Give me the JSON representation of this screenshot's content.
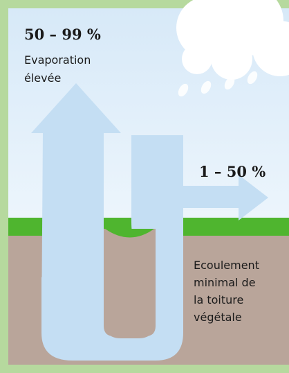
{
  "evaporation": {
    "range": "50 – 99 %",
    "lines": [
      "Evaporation",
      "élevée"
    ]
  },
  "runoff": {
    "range": "1 – 50 %"
  },
  "drainage": {
    "lines": [
      "Ecoulement",
      "minimal de",
      "la toiture",
      "végétale"
    ]
  }
}
